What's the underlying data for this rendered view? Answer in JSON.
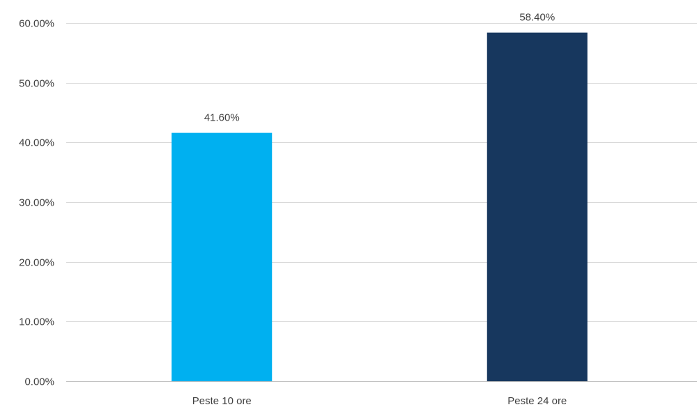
{
  "chart_data": {
    "type": "bar",
    "categories": [
      "Peste 10 ore",
      "Peste 24 ore"
    ],
    "values": [
      41.6,
      58.4
    ],
    "value_labels": [
      "41.60%",
      "58.40%"
    ],
    "colors": [
      "#00b0f0",
      "#17375e"
    ],
    "title": "",
    "xlabel": "",
    "ylabel": "",
    "ylim": [
      0,
      60
    ],
    "y_ticks": [
      0,
      10,
      20,
      30,
      40,
      50,
      60
    ],
    "y_tick_labels": [
      "0.00%",
      "10.00%",
      "20.00%",
      "30.00%",
      "40.00%",
      "50.00%",
      "60.00%"
    ],
    "grid": true,
    "legend": "none"
  }
}
